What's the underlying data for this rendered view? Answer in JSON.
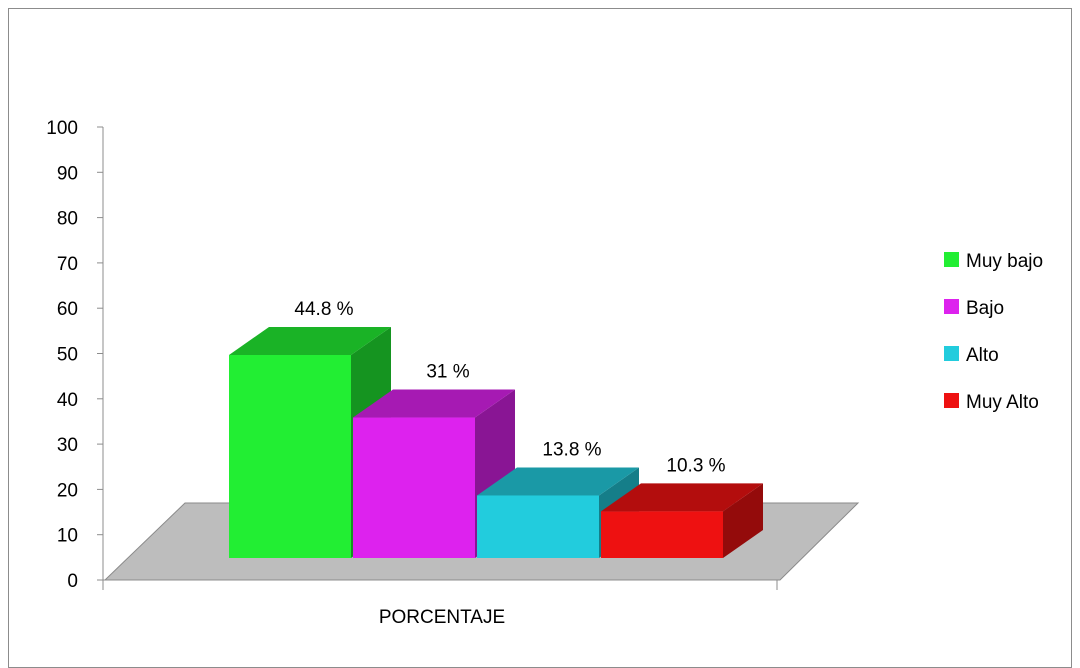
{
  "chart_data": {
    "type": "bar",
    "title": "",
    "xlabel": "",
    "ylabel": "",
    "ylim": [
      0,
      100
    ],
    "y_ticks": [
      "0",
      "10",
      "20",
      "30",
      "40",
      "50",
      "60",
      "70",
      "80",
      "90",
      "100"
    ],
    "category": "PORCENTAJE",
    "legend_position": "right",
    "grid": false,
    "series": [
      {
        "name": "Muy bajo",
        "value": 44.8,
        "label": "44.8 %",
        "color": "#22ee33"
      },
      {
        "name": "Bajo",
        "value": 31,
        "label": "31 %",
        "color": "#dd22ee"
      },
      {
        "name": "Alto",
        "value": 13.8,
        "label": "13.8 %",
        "color": "#22ccdd"
      },
      {
        "name": "Muy Alto",
        "value": 10.3,
        "label": "10.3 %",
        "color": "#ee1111"
      }
    ]
  }
}
